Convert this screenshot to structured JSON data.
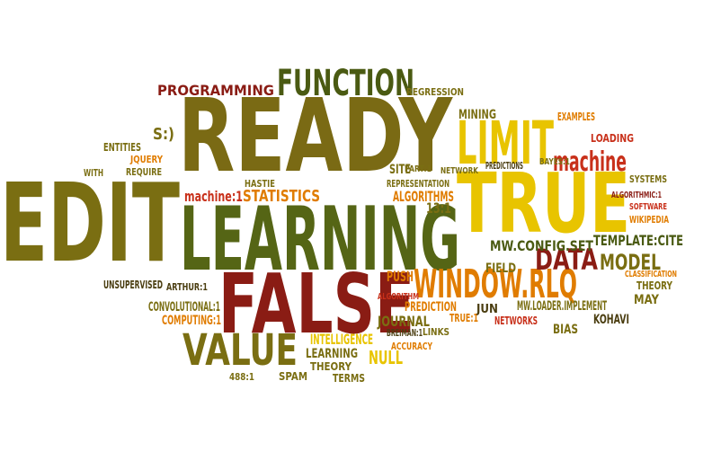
{
  "words": [
    {
      "text": "EDIT"
    },
    {
      "text": "READY"
    },
    {
      "text": "LEARNING"
    },
    {
      "text": "FALSE"
    },
    {
      "text": "TRUE"
    },
    {
      "text": "LIMIT"
    },
    {
      "text": "FUNCTION"
    },
    {
      "text": "VALUE"
    },
    {
      "text": "WINDOW.RLQ"
    },
    {
      "text": "DATA"
    },
    {
      "text": "MODEL"
    },
    {
      "text": "machine"
    },
    {
      "text": "PROGRAMMING"
    },
    {
      "text": "REGRESSION"
    },
    {
      "text": "MINING"
    },
    {
      "text": "EXAMPLES"
    },
    {
      "text": "LOADING"
    },
    {
      "text": "STATISTICS"
    },
    {
      "text": "ALGORITHMS"
    },
    {
      "text": "REPRESENTATION"
    },
    {
      "text": "SITE"
    },
    {
      "text": "PREDICTIONS"
    },
    {
      "text": "NETWORK"
    },
    {
      "text": "SYSTEMS"
    },
    {
      "text": "SOFTWARE"
    },
    {
      "text": "ALGORITHMIC:1"
    },
    {
      "text": "WIKIPEDIA"
    },
    {
      "text": "TEMPLATE:CITE"
    },
    {
      "text": "MW.CONFIG.SET"
    },
    {
      "text": "FIELD"
    },
    {
      "text": "CLASSIFICATION"
    },
    {
      "text": "THEORY"
    },
    {
      "text": "MAY"
    },
    {
      "text": "KOHAVI"
    },
    {
      "text": "BIAS"
    },
    {
      "text": "NETWORKS"
    },
    {
      "text": "MW.LOADER.IMPLEMENT"
    },
    {
      "text": "JUN"
    },
    {
      "text": "TRUE:1"
    },
    {
      "text": "PREDICTION"
    },
    {
      "text": "ALGORITHM"
    },
    {
      "text": "PUSH"
    },
    {
      "text": "JOURNAL"
    },
    {
      "text": "INTELLIGENCE"
    },
    {
      "text": "LEARNING"
    },
    {
      "text": "THEORY"
    },
    {
      "text": "NULL"
    },
    {
      "text": "ACCURACY"
    },
    {
      "text": "LINKS"
    },
    {
      "text": "BREIMAN:1"
    },
    {
      "text": "SPAM"
    },
    {
      "text": "TERMS"
    },
    {
      "text": "488:1"
    },
    {
      "text": "UNSUPERVISED"
    },
    {
      "text": "ARTHUR:1"
    },
    {
      "text": "CONVOLUTIONAL:1"
    },
    {
      "text": "COMPUTING:1"
    },
    {
      "text": "machine:1"
    },
    {
      "text": "HASTIE"
    },
    {
      "text": "13:1"
    },
    {
      "text": "PART:1"
    },
    {
      "text": "S:)"
    },
    {
      "text": "ENTITIES"
    },
    {
      "text": "JQUERY"
    },
    {
      "text": "REQUIRE"
    },
    {
      "text": "WITH"
    },
    {
      "text": "BAYES:1"
    }
  ]
}
